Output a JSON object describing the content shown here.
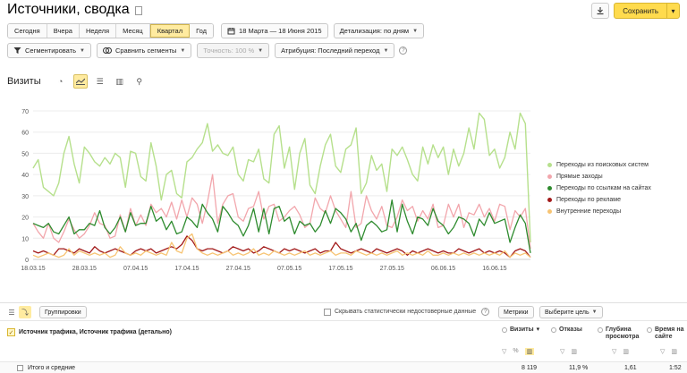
{
  "header": {
    "title": "Источники, сводка",
    "save_label": "Сохранить"
  },
  "periods": [
    "Сегодня",
    "Вчера",
    "Неделя",
    "Месяц",
    "Квартал",
    "Год"
  ],
  "active_period": "Квартал",
  "date_range": "18 Марта — 18 Июня 2015",
  "detail": "Детализация: по дням",
  "toolbar": {
    "segment": "Сегментировать",
    "compare": "Сравнить сегменты",
    "accuracy": "Точность: 100 %",
    "attribution": "Атрибуция: Последний переход"
  },
  "chart_section_title": "Визиты",
  "chart_data": {
    "type": "line",
    "ylim": [
      0,
      70
    ],
    "yticks": [
      0,
      10,
      20,
      30,
      40,
      50,
      60,
      70
    ],
    "x_tick_labels": [
      "18.03.15",
      "28.03.15",
      "07.04.15",
      "17.04.15",
      "27.04.15",
      "07.05.15",
      "17.05.15",
      "27.05.15",
      "06.06.15",
      "16.06.15"
    ],
    "x_tick_index": [
      0,
      10,
      20,
      30,
      40,
      50,
      60,
      70,
      80,
      90
    ],
    "series": [
      {
        "name": "Переходы из поисковых систем",
        "color": "#b6e08c",
        "values": [
          43,
          47,
          34,
          32,
          30,
          36,
          50,
          58,
          45,
          36,
          53,
          50,
          46,
          44,
          48,
          45,
          50,
          48,
          34,
          51,
          50,
          39,
          37,
          55,
          44,
          28,
          40,
          42,
          31,
          29,
          46,
          48,
          52,
          55,
          64,
          51,
          54,
          50,
          49,
          53,
          40,
          37,
          47,
          46,
          52,
          38,
          36,
          59,
          63,
          43,
          53,
          33,
          50,
          57,
          35,
          31,
          44,
          54,
          59,
          44,
          41,
          52,
          54,
          62,
          31,
          36,
          49,
          42,
          45,
          32,
          52,
          49,
          53,
          47,
          40,
          37,
          53,
          45,
          54,
          48,
          53,
          40,
          52,
          44,
          50,
          62,
          52,
          69,
          66,
          49,
          52,
          43,
          48,
          60,
          52,
          69,
          64,
          8
        ]
      },
      {
        "name": "Прямые заходы",
        "color": "#f2a6ac",
        "values": [
          17,
          13,
          10,
          17,
          10,
          8,
          13,
          19,
          14,
          10,
          12,
          16,
          22,
          17,
          16,
          10,
          11,
          21,
          13,
          24,
          16,
          21,
          16,
          26,
          22,
          24,
          20,
          27,
          19,
          28,
          20,
          29,
          26,
          17,
          27,
          40,
          17,
          26,
          30,
          31,
          20,
          18,
          24,
          25,
          32,
          19,
          25,
          26,
          18,
          20,
          23,
          25,
          21,
          15,
          17,
          29,
          24,
          22,
          30,
          23,
          19,
          15,
          32,
          15,
          17,
          30,
          23,
          19,
          25,
          16,
          15,
          20,
          28,
          23,
          25,
          18,
          23,
          19,
          26,
          15,
          16,
          26,
          20,
          26,
          15,
          22,
          21,
          26,
          20,
          24,
          18,
          26,
          25,
          14,
          23,
          20,
          24,
          5
        ]
      },
      {
        "name": "Переходы по ссылкам на сайтах",
        "color": "#2e8b2e",
        "values": [
          17,
          16,
          15,
          17,
          13,
          12,
          16,
          20,
          12,
          14,
          14,
          17,
          16,
          23,
          15,
          12,
          15,
          20,
          13,
          22,
          16,
          17,
          17,
          25,
          18,
          20,
          14,
          18,
          12,
          13,
          20,
          18,
          15,
          26,
          22,
          19,
          13,
          25,
          22,
          18,
          16,
          11,
          16,
          24,
          13,
          24,
          12,
          24,
          25,
          18,
          20,
          12,
          18,
          16,
          17,
          13,
          16,
          23,
          17,
          24,
          22,
          19,
          13,
          17,
          9,
          16,
          18,
          16,
          13,
          14,
          28,
          13,
          26,
          18,
          12,
          20,
          19,
          16,
          24,
          18,
          16,
          12,
          15,
          20,
          19,
          17,
          11,
          19,
          16,
          22,
          17,
          18,
          19,
          8,
          15,
          21,
          17,
          3
        ]
      },
      {
        "name": "Переходы по рекламе",
        "color": "#a21a1a",
        "values": [
          4,
          3,
          4,
          3,
          2,
          5,
          5,
          4,
          3,
          5,
          4,
          3,
          6,
          4,
          3,
          4,
          5,
          4,
          3,
          2,
          4,
          5,
          4,
          5,
          3,
          4,
          5,
          6,
          5,
          7,
          11,
          9,
          5,
          4,
          5,
          5,
          4,
          3,
          4,
          6,
          5,
          4,
          5,
          3,
          4,
          6,
          5,
          4,
          3,
          5,
          4,
          5,
          4,
          3,
          4,
          5,
          3,
          4,
          4,
          8,
          5,
          4,
          3,
          4,
          5,
          4,
          3,
          5,
          4,
          3,
          4,
          5,
          4,
          2,
          4,
          3,
          4,
          5,
          4,
          3,
          4,
          3,
          3,
          5,
          4,
          3,
          4,
          5,
          3,
          4,
          3,
          4,
          3,
          1,
          4,
          5,
          4,
          1
        ]
      },
      {
        "name": "Внутренние переходы",
        "color": "#f7c473",
        "values": [
          2,
          1,
          2,
          3,
          2,
          1,
          2,
          5,
          2,
          4,
          3,
          2,
          3,
          2,
          3,
          1,
          2,
          6,
          3,
          2,
          3,
          2,
          4,
          3,
          2,
          3,
          2,
          8,
          4,
          3,
          10,
          12,
          5,
          3,
          2,
          3,
          2,
          3,
          4,
          2,
          3,
          2,
          3,
          5,
          2,
          3,
          2,
          4,
          3,
          2,
          3,
          2,
          3,
          4,
          2,
          3,
          2,
          3,
          4,
          2,
          3,
          3,
          2,
          4,
          3,
          2,
          3,
          2,
          3,
          2,
          3,
          4,
          2,
          3,
          2,
          3,
          2,
          4,
          2,
          2,
          3,
          2,
          3,
          2,
          3,
          2,
          3,
          2,
          3,
          2,
          3,
          2,
          4,
          1,
          3,
          2,
          3,
          1
        ]
      }
    ],
    "legend": "right"
  },
  "table_toolbar": {
    "group_label": "Группировки",
    "hide_unreliable": "Скрывать статистически недостоверные данные",
    "metrics_label": "Метрики",
    "goal_label": "Выберите цель"
  },
  "table": {
    "dimension_header": "Источник трафика, Источник трафика (детально)",
    "columns": [
      {
        "label": "Визиты",
        "sorted": true
      },
      {
        "label": "Отказы"
      },
      {
        "label": "Глубина просмотра"
      },
      {
        "label": "Время на сайте"
      }
    ],
    "totals_label": "Итого и средние",
    "totals": [
      "8 119",
      "11,9 %",
      "1,61",
      "1:52"
    ]
  }
}
